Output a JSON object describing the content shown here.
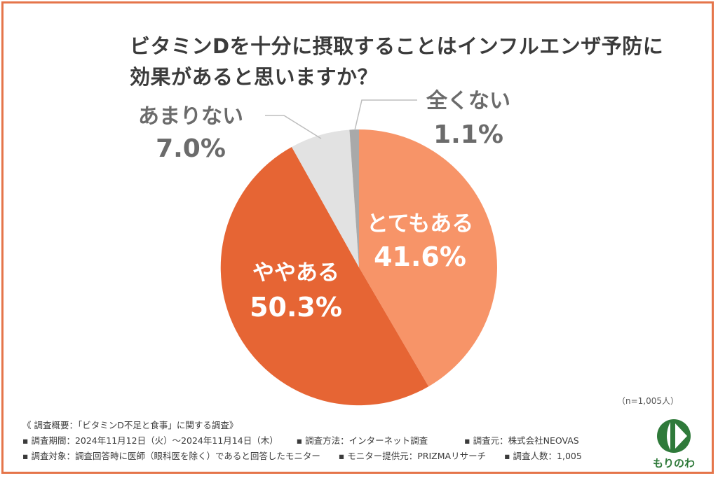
{
  "title_line1": "ビタミンDを十分に摂取することはインフルエンザ予防に",
  "title_line2": "効果があると思いますか？",
  "chart_data": {
    "type": "pie",
    "title": "ビタミンDを十分に摂取することはインフルエンザ予防に効果があると思いますか？",
    "slices": [
      {
        "label": "とてもある",
        "value": 41.6,
        "value_label": "41.6%",
        "color": "#f79468"
      },
      {
        "label": "ややある",
        "value": 50.3,
        "value_label": "50.3%",
        "color": "#e66534"
      },
      {
        "label": "あまりない",
        "value": 7.0,
        "value_label": "7.0%",
        "color": "#e2e2e2"
      },
      {
        "label": "全くない",
        "value": 1.1,
        "value_label": "1.1%",
        "color": "#a9a9a9"
      }
    ],
    "start": "12 o'clock",
    "direction": "clockwise",
    "legend": "none"
  },
  "n_note": "（n=1,005人）",
  "notes": {
    "heading": "《 調査概要：「ビタミンD不足と食事」に関する調査》",
    "period": "▪ 調査期間：2024年11月12日（火）〜2024年11月14日（木）",
    "method": "▪ 調査方法：インターネット調査",
    "organizer": "▪ 調査元：株式会社NEOVAS",
    "target": "▪ 調査対象：調査回答時に医師（眼科医を除く）であると回答したモニター",
    "provider": "▪ モニター提供元：PRIZMAリサーチ",
    "count": "▪ 調査人数：1,005"
  },
  "logo": {
    "text": "もりのわ",
    "color": "#2f7a3a",
    "icon": "leaf-logo-icon"
  }
}
